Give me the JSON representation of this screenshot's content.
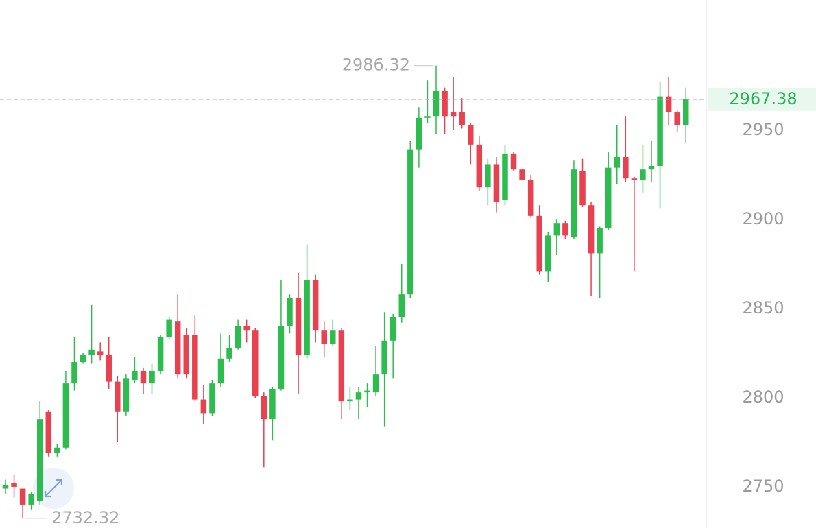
{
  "chart_data": {
    "type": "candlestick",
    "up_color": "#2dbd4e",
    "down_color": "#e8414f",
    "last_price_color": "#22b24c",
    "last_price_line": true,
    "ylim": [
      2726.9,
      3023.1
    ],
    "yticks": [
      2750,
      2800,
      2850,
      2900,
      2950
    ],
    "open": [
      2749,
      2752,
      2749,
      2740,
      2742,
      2792,
      2769,
      2772,
      2808,
      2820,
      2824,
      2826,
      2824,
      2809,
      2792,
      2810,
      2815,
      2808,
      2815,
      2834,
      2843,
      2835,
      2835,
      2799,
      2791,
      2808,
      2822,
      2828,
      2840,
      2838,
      2801,
      2788,
      2805,
      2840,
      2856,
      2824,
      2866,
      2838,
      2830,
      2838,
      2798,
      2799,
      2803,
      2803,
      2813,
      2832,
      2845,
      2858,
      2939,
      2957,
      2958,
      2972,
      2960,
      2960,
      2953,
      2942,
      2918,
      2931,
      2911,
      2937,
      2928,
      2922,
      2902,
      2871,
      2891,
      2898,
      2890,
      2927,
      2908,
      2881,
      2895,
      2929,
      2935,
      2923,
      2922,
      2928,
      2930,
      2969,
      2960,
      2953
    ],
    "high": [
      2754,
      2757,
      2749,
      2747,
      2798,
      2793,
      2774,
      2815,
      2834,
      2825,
      2852,
      2831,
      2834,
      2812,
      2813,
      2823,
      2817,
      2819,
      2835,
      2845,
      2858,
      2839,
      2846,
      2807,
      2810,
      2836,
      2835,
      2844,
      2844,
      2839,
      2803,
      2806,
      2866,
      2858,
      2870,
      2886,
      2869,
      2843,
      2844,
      2839,
      2806,
      2806,
      2808,
      2829,
      2848,
      2847,
      2875,
      2944,
      2963,
      2978,
      2986.32,
      2974,
      2980,
      2968,
      2954,
      2947,
      2934,
      2935,
      2942,
      2938,
      2928,
      2925,
      2908,
      2893,
      2900,
      2899,
      2933,
      2934,
      2910,
      2896,
      2938,
      2953,
      2958,
      2924,
      2942,
      2944,
      2977,
      2980,
      2961,
      2974
    ],
    "low": [
      2746,
      2744,
      2732.32,
      2737,
      2740,
      2767,
      2767,
      2771,
      2804,
      2819,
      2819,
      2821,
      2805,
      2775,
      2790,
      2808,
      2802,
      2802,
      2813,
      2833,
      2811,
      2811,
      2798,
      2785,
      2790,
      2806,
      2820,
      2827,
      2831,
      2800,
      2761,
      2776,
      2804,
      2836,
      2802,
      2822,
      2831,
      2823,
      2829,
      2788,
      2793,
      2788,
      2795,
      2801,
      2784,
      2811,
      2842,
      2856,
      2929,
      2954,
      2948,
      2948,
      2950,
      2951,
      2931,
      2916,
      2908,
      2904,
      2908,
      2927,
      2922,
      2901,
      2869,
      2865,
      2880,
      2889,
      2889,
      2907,
      2857,
      2856,
      2894,
      2920,
      2921,
      2871,
      2915,
      2921,
      2906,
      2953,
      2949,
      2943
    ],
    "close": [
      2751,
      2750,
      2740,
      2746,
      2788,
      2769,
      2772,
      2808,
      2820,
      2824,
      2827,
      2824,
      2809,
      2792,
      2811,
      2815,
      2808,
      2815,
      2834,
      2844,
      2813,
      2813,
      2799,
      2791,
      2808,
      2822,
      2828,
      2840,
      2838,
      2801,
      2788,
      2805,
      2840,
      2856,
      2824,
      2866,
      2838,
      2830,
      2838,
      2798,
      2799,
      2803,
      2804,
      2813,
      2832,
      2845,
      2858,
      2939,
      2957,
      2958,
      2972,
      2958,
      2958,
      2953,
      2942,
      2918,
      2931,
      2910,
      2937,
      2928,
      2922,
      2902,
      2871,
      2891,
      2898,
      2891,
      2928,
      2908,
      2881,
      2895,
      2929,
      2935,
      2923,
      2922,
      2928,
      2930,
      2969,
      2960,
      2953,
      2967.38
    ]
  }
}
